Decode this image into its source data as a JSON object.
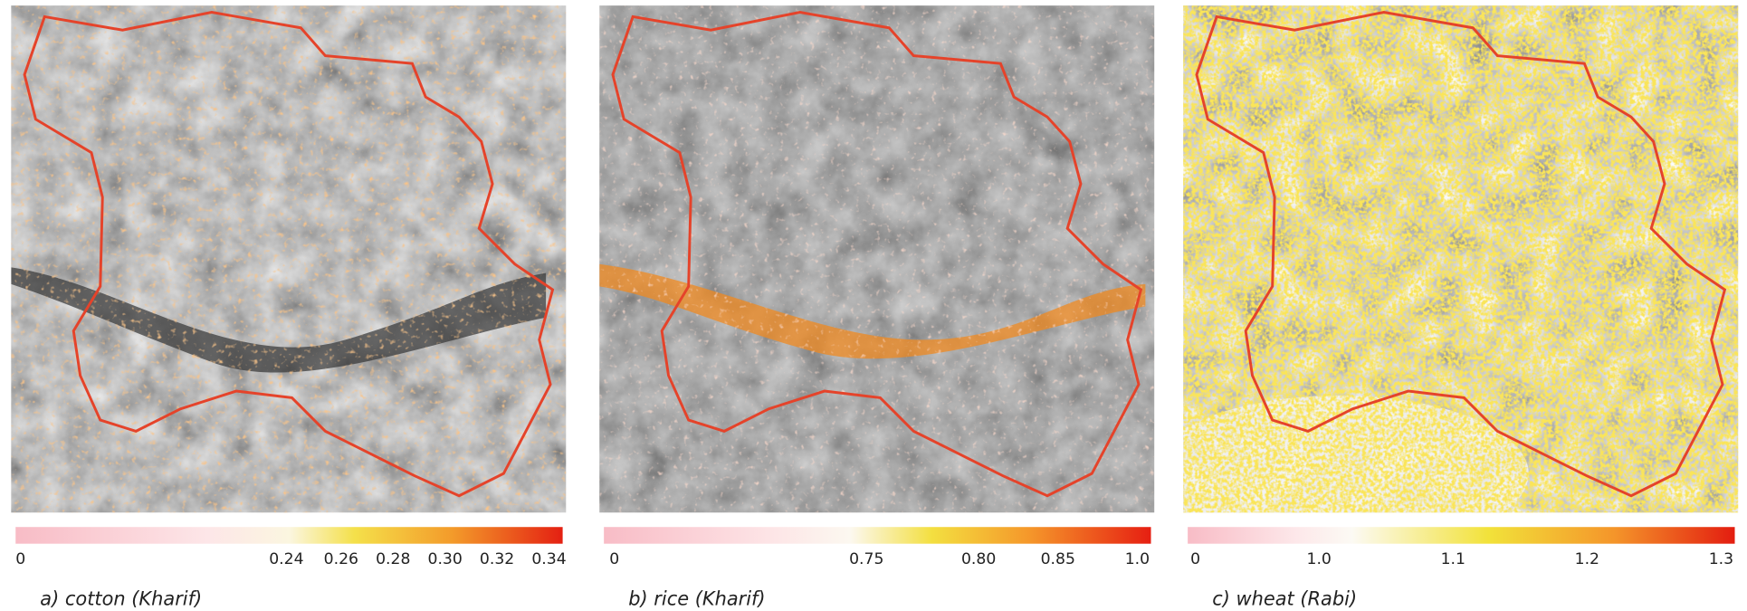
{
  "panels": [
    {
      "caption": "a) cotton (Kharif)",
      "colorbar_ticks": [
        "0",
        "0.24",
        "0.26",
        "0.28",
        "0.30",
        "0.32",
        "0.34"
      ]
    },
    {
      "caption": "b) rice (Kharif)",
      "colorbar_ticks": [
        "0",
        "0.75",
        "0.80",
        "0.85",
        "1.0"
      ]
    },
    {
      "caption": "c) wheat (Rabi)",
      "colorbar_ticks": [
        "0",
        "1.0",
        "1.1",
        "1.2",
        "1.3"
      ]
    }
  ]
}
